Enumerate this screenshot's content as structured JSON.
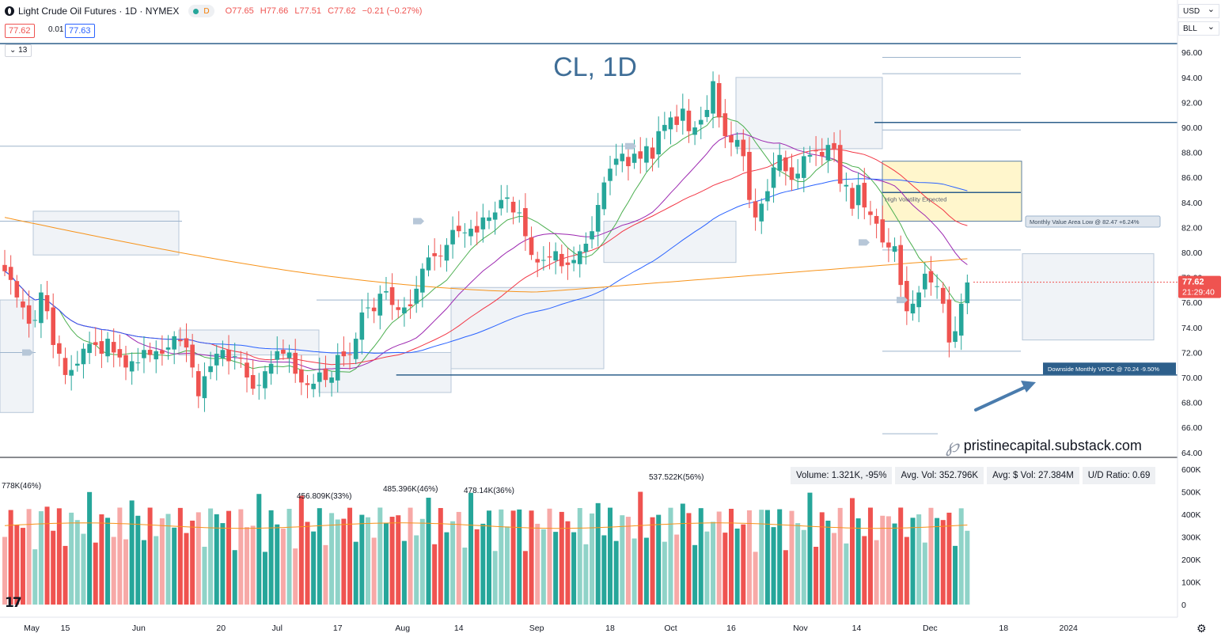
{
  "header": {
    "symbol_title": "Light Crude Oil Futures · 1D · NYMEX",
    "badge_label": "D",
    "open": "O77.65",
    "high": "H77.66",
    "low": "L77.51",
    "close": "C77.62",
    "change": "−0.21 (−0.27%)",
    "sell_price": "77.62",
    "spread": "0.01",
    "buy_price": "77.63",
    "indicators_toggle": "⌄ 13"
  },
  "top_right": {
    "currency": "USD",
    "unit": "BLL"
  },
  "chart_title": "CL, 1D",
  "last_price": {
    "price": "77.62",
    "countdown": "21:29:40"
  },
  "annotations": {
    "high_volatility": "High Volatility Expected",
    "value_area_low": "Monthly Value Area Low @ 82.47  +6.24%",
    "vpoc": "Downside Monthly VPOC @ 70.24  -9.50%"
  },
  "stats": {
    "volume": "Volume: 1.321K, -95%",
    "avg_vol": "Avg. Vol: 352.796K",
    "avg_dollar_vol": "Avg: $ Vol: 27.384M",
    "ud_ratio": "U/D Ratio: 0.69"
  },
  "watermark": "pristinecapital.substack.com",
  "watermark_logo": "℘",
  "tv_logo": "17",
  "colors": {
    "up": "#26a69a",
    "down": "#ef5350",
    "up_vol": "#8fd3c8",
    "down_vol": "#f7a9a7",
    "ma10": "#4caf50",
    "ma21": "#9c27b0",
    "ma50": "#f23645",
    "ma100": "#2962ff",
    "ma200": "#f7931a",
    "level": "#2d5f8b"
  },
  "chart_data": {
    "type": "candlestick",
    "price_axis": {
      "ticks": [
        "64.00",
        "66.00",
        "68.00",
        "70.00",
        "72.00",
        "74.00",
        "76.00",
        "78.00",
        "80.00",
        "82.00",
        "84.00",
        "86.00",
        "88.00",
        "90.00",
        "92.00",
        "94.00",
        "96.00"
      ],
      "ylim": [
        63.8,
        97.3
      ]
    },
    "volume_axis": {
      "ticks": [
        "0",
        "100K",
        "200K",
        "300K",
        "400K",
        "500K",
        "600K"
      ],
      "ylim": [
        0,
        620
      ]
    },
    "time_axis": [
      "May",
      "15",
      "Jun",
      "20",
      "Jul",
      "17",
      "Aug",
      "14",
      "Sep",
      "18",
      "Oct",
      "16",
      "Nov",
      "14",
      "Dec",
      "18",
      "2024"
    ],
    "date_range": [
      "2023-05-01",
      "2023-11-20"
    ],
    "volume_labels": [
      "778K(46%)",
      "485.396K(46%)",
      "456.809K(33%)",
      "478.14K(36%)",
      "537.522K(56%)"
    ],
    "levels": [
      96.7,
      90.4,
      84.8,
      70.2
    ],
    "close_series": [
      78.5,
      77.8,
      76.4,
      75.6,
      74.3,
      74.6,
      76.8,
      75.3,
      72.6,
      71.9,
      70.2,
      70.6,
      71.1,
      72.3,
      72.7,
      72.6,
      71.9,
      73.1,
      72.0,
      71.6,
      70.8,
      71.3,
      71.2,
      72.2,
      71.8,
      72.1,
      71.9,
      72.4,
      73.3,
      72.9,
      72.4,
      70.8,
      68.5,
      70.1,
      70.9,
      71.9,
      72.2,
      71.3,
      71.7,
      71.5,
      70.0,
      69.1,
      69.4,
      70.5,
      71.1,
      72.1,
      71.9,
      72.0,
      70.3,
      69.6,
      69.4,
      69.5,
      70.4,
      69.8,
      70.0,
      71.8,
      71.7,
      71.8,
      73.1,
      75.2,
      75.6,
      75.3,
      76.7,
      76.9,
      75.8,
      75.4,
      75.6,
      75.7,
      77.1,
      78.7,
      79.6,
      79.7,
      79.7,
      80.6,
      81.8,
      81.7,
      81.6,
      81.9,
      81.6,
      82.8,
      82.8,
      83.2,
      84.2,
      84.4,
      83.2,
      83.2,
      81.3,
      79.8,
      79.2,
      79.4,
      79.6,
      80.1,
      78.9,
      79.0,
      79.4,
      80.1,
      80.7,
      81.7,
      83.8,
      85.6,
      86.7,
      87.5,
      87.9,
      86.9,
      87.9,
      87.5,
      88.5,
      87.5,
      89.7,
      90.2,
      90.8,
      90.2,
      91.5,
      89.7,
      90.0,
      90.6,
      91.4,
      93.7,
      90.8,
      89.3,
      88.8,
      89.0,
      87.7,
      84.2,
      82.8,
      83.9,
      84.9,
      86.8,
      87.8,
      86.5,
      85.8,
      86.3,
      87.7,
      87.8,
      88.1,
      87.7,
      88.6,
      88.3,
      85.5,
      85.4,
      83.5,
      85.4,
      83.6,
      83.0,
      82.3,
      80.8,
      80.4,
      80.5,
      77.4,
      75.3,
      75.9,
      76.8,
      78.3,
      77.6,
      77.3,
      75.9,
      72.8,
      73.7,
      75.9,
      77.6
    ]
  }
}
